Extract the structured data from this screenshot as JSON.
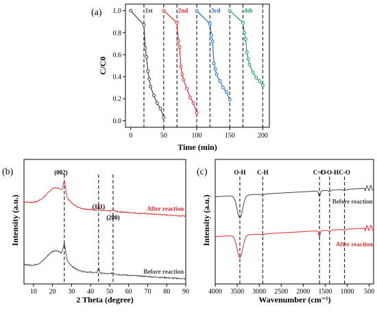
{
  "chart_data": [
    {
      "panel": "(a)",
      "type": "line",
      "ylabel": "C/C0",
      "xlabel": "Time (min)",
      "xlim": [
        -8,
        210
      ],
      "ylim": [
        -0.06,
        1.06
      ],
      "xticks": [
        0,
        50,
        100,
        150,
        200
      ],
      "yticks": [
        0.0,
        0.2,
        0.4,
        0.6,
        0.8,
        1.0
      ],
      "vlines": [
        20,
        50,
        70,
        100,
        120,
        150,
        170,
        200
      ],
      "series": [
        {
          "name": "1st",
          "color": "#404040",
          "x": [
            0,
            20,
            22,
            24,
            26,
            28,
            30,
            35,
            40,
            45,
            50
          ],
          "y": [
            1.0,
            0.87,
            0.66,
            0.58,
            0.45,
            0.38,
            0.31,
            0.23,
            0.16,
            0.11,
            0.03
          ]
        },
        {
          "name": "2nd",
          "color": "#e8292b",
          "x": [
            50,
            70,
            72,
            74,
            76,
            78,
            80,
            85,
            90,
            95,
            100
          ],
          "y": [
            1.0,
            0.89,
            0.73,
            0.67,
            0.49,
            0.42,
            0.37,
            0.29,
            0.21,
            0.16,
            0.07
          ]
        },
        {
          "name": "3rd",
          "color": "#1a6fd6",
          "x": [
            100,
            120,
            122,
            124,
            126,
            128,
            130,
            135,
            140,
            145,
            150
          ],
          "y": [
            1.0,
            0.88,
            0.78,
            0.72,
            0.52,
            0.47,
            0.42,
            0.36,
            0.3,
            0.26,
            0.19
          ]
        },
        {
          "name": "4th",
          "color": "#1a9e5c",
          "x": [
            150,
            170,
            172,
            174,
            176,
            178,
            180,
            185,
            190,
            195,
            200
          ],
          "y": [
            1.0,
            0.89,
            0.8,
            0.74,
            0.62,
            0.56,
            0.51,
            0.44,
            0.39,
            0.36,
            0.32
          ]
        }
      ],
      "labels": [
        {
          "text": "1st",
          "x": 30,
          "y": 1.0
        },
        {
          "text": "2nd",
          "x": 80,
          "y": 1.0
        },
        {
          "text": "3rd",
          "x": 130,
          "y": 1.0
        },
        {
          "text": "4th",
          "x": 180,
          "y": 1.0
        }
      ]
    },
    {
      "panel": "(b)",
      "type": "line",
      "ylabel": "Intensity (a.u.)",
      "xlabel": "2 Theta (degree)",
      "xlim": [
        5,
        90
      ],
      "xticks": [
        10,
        20,
        30,
        40,
        50,
        60,
        70,
        80,
        90
      ],
      "vlines": [
        26.2,
        44.2,
        51.8
      ],
      "peaks": [
        {
          "label": "(002)",
          "x": 26.2
        },
        {
          "label": "(111)",
          "x": 44.2
        },
        {
          "label": "(200)",
          "x": 51.8
        }
      ],
      "series": [
        {
          "name": "After reaction",
          "color": "#e8292b",
          "offset": 0.58
        },
        {
          "name": "Before reaction",
          "color": "#404040",
          "offset": 0.0
        }
      ]
    },
    {
      "panel": "(c)",
      "type": "line",
      "ylabel": "Intensity (a.u.)",
      "xlabel": "Wavenumber (cm⁻¹)",
      "xlim": [
        4000,
        400
      ],
      "xticks": [
        4000,
        3500,
        3000,
        2500,
        2000,
        1500,
        1000,
        500
      ],
      "vlines": [
        3440,
        2920,
        1630,
        1400,
        1060
      ],
      "bands": [
        {
          "label": "O-H",
          "x": 3440
        },
        {
          "label": "C-H",
          "x": 2920
        },
        {
          "label": "C=O",
          "x": 1630
        },
        {
          "label": "C-O-H",
          "x": 1400
        },
        {
          "label": "C-O",
          "x": 1060
        }
      ],
      "series": [
        {
          "name": "Before reaction",
          "color": "#404040"
        },
        {
          "name": "After reaction",
          "color": "#e8292b"
        }
      ]
    }
  ],
  "colors": {
    "black": "#404040",
    "red": "#e8292b",
    "blue": "#1a6fd6",
    "green": "#1a9e5c"
  }
}
